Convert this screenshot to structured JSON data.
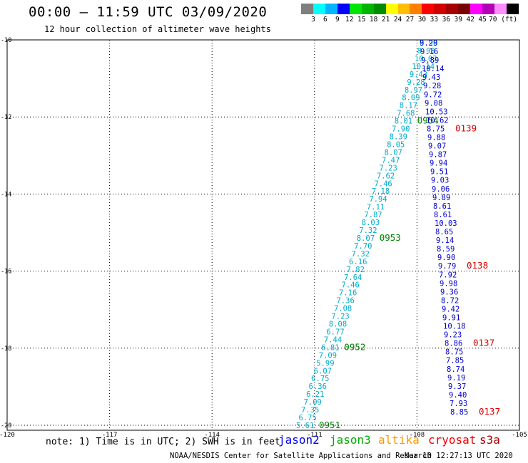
{
  "header": {
    "title": "00:00 — 11:59 UTC 03/09/2020",
    "subtitle": "12 hour collection of altimeter wave heights"
  },
  "colorbar": {
    "colors": [
      "#7f7f7f",
      "#00ffff",
      "#00b4ff",
      "#0000ff",
      "#00e600",
      "#00b400",
      "#008c00",
      "#ffff00",
      "#ffbe00",
      "#ff8000",
      "#ff0000",
      "#d20000",
      "#a50000",
      "#780000",
      "#ff00ff",
      "#b400b4",
      "#ff8cff",
      "#000000"
    ],
    "labels": [
      "3",
      "6",
      "9",
      "12",
      "15",
      "18",
      "21",
      "24",
      "27",
      "30",
      "33",
      "36",
      "39",
      "42",
      "45",
      "70 (ft)"
    ]
  },
  "map": {
    "lat_labels": [
      "-10",
      "-12",
      "-14",
      "-16",
      "-18",
      "-20"
    ],
    "lon_labels": [
      "-120",
      "-117",
      "-114",
      "-111",
      "-108",
      "-105"
    ],
    "tracks": [
      {
        "satellite": "jason3",
        "color": "#00aacc",
        "points": [
          "8.98",
          "8.98",
          "10.03",
          "10.14",
          "9.43",
          "9.28",
          "8.97",
          "8.09",
          "8.17",
          "7.68",
          "8.01",
          "7.90",
          "8.39",
          "8.05",
          "8.07",
          "7.47",
          "7.23",
          "7.62",
          "7.46",
          "7.18",
          "7.94",
          "7.11",
          "7.87",
          "8.03",
          "7.32",
          "8.07",
          "7.70",
          "7.32",
          "6.16",
          "7.82",
          "7.64",
          "7.46",
          "7.16",
          "7.36",
          "7.08",
          "7.23",
          "8.08",
          "6.77",
          "7.44",
          "6.81",
          "7.09",
          "5.99",
          "6.07",
          "6.75",
          "6.36",
          "6.21",
          "7.09",
          "7.35",
          "6.75",
          "5.61"
        ],
        "time_labels": [
          {
            "text": "0954",
            "color": "#008000",
            "pt": 10
          },
          {
            "text": "0953",
            "color": "#008000",
            "pt": 25
          },
          {
            "text": "0952",
            "color": "#008000",
            "pt": 39
          },
          {
            "text": "0951",
            "color": "#008000",
            "pt": 49
          }
        ]
      },
      {
        "satellite": "cryosat",
        "color": "#0000cc",
        "points": [
          "9.29",
          "9.16",
          "9.89",
          "10.14",
          "9.43",
          "9.28",
          "9.72",
          "9.08",
          "10.53",
          "10.62",
          "8.75",
          "9.88",
          "9.07",
          "9.87",
          "9.94",
          "9.51",
          "9.03",
          "9.06",
          "9.89",
          "8.61",
          "8.61",
          "10.03",
          "8.65",
          "9.14",
          "8.59",
          "9.90",
          "9.79",
          "7.92",
          "9.98",
          "9.36",
          "8.72",
          "9.42",
          "9.91",
          "10.18",
          "9.23",
          "8.86",
          "8.75",
          "7.85",
          "8.74",
          "9.19",
          "9.37",
          "9.40",
          "7.93",
          "8.85"
        ],
        "time_labels": [
          {
            "text": "0139",
            "color": "#dd0000",
            "pt": 10
          },
          {
            "text": "0138",
            "color": "#dd0000",
            "pt": 26
          },
          {
            "text": "0137",
            "color": "#dd0000",
            "pt": 35
          },
          {
            "text": "0137",
            "color": "#dd0000",
            "pt": 43
          }
        ]
      }
    ]
  },
  "note": "note: 1) Time is in UTC; 2) SWH is in feet",
  "legend": [
    {
      "label": "jason2",
      "color": "#0000ee"
    },
    {
      "label": "jason3",
      "color": "#00aa00"
    },
    {
      "label": "altika",
      "color": "#ff9900"
    },
    {
      "label": "cryosat",
      "color": "#ee0000"
    },
    {
      "label": "s3a",
      "color": "#aa0000"
    }
  ],
  "footer": {
    "center": "NOAA/NESDIS Center for Satellite Applications and Research",
    "date": "Mar 10 12:27:13 UTC 2020"
  }
}
